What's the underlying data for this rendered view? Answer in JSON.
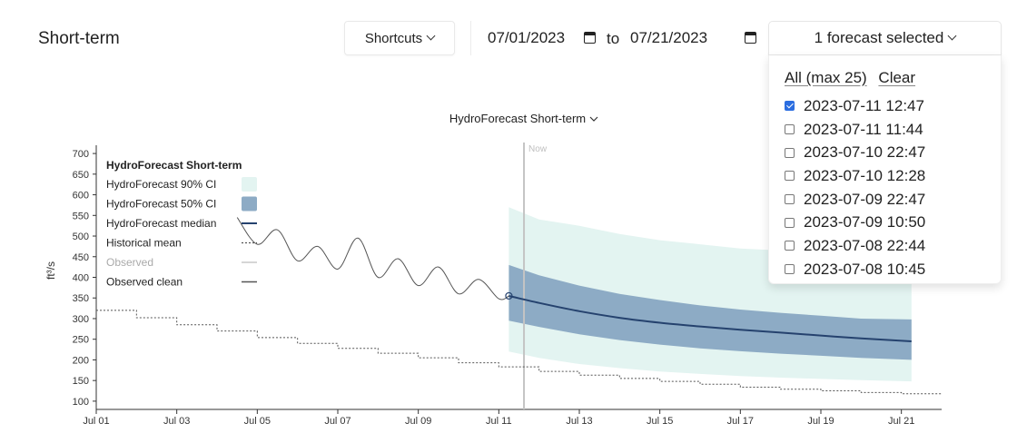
{
  "header": {
    "title": "Short-term",
    "shortcuts_label": "Shortcuts",
    "date_from": "07/01/2023",
    "date_to_label": "to",
    "date_to": "07/21/2023",
    "forecast_selector_label": "1 forecast selected"
  },
  "dropdown": {
    "all_label": "All (max 25)",
    "clear_label": "Clear",
    "items": [
      {
        "label": "2023-07-11 12:47",
        "checked": true
      },
      {
        "label": "2023-07-11 11:44",
        "checked": false
      },
      {
        "label": "2023-07-10 22:47",
        "checked": false
      },
      {
        "label": "2023-07-10 12:28",
        "checked": false
      },
      {
        "label": "2023-07-09 22:47",
        "checked": false
      },
      {
        "label": "2023-07-09 10:50",
        "checked": false
      },
      {
        "label": "2023-07-08 22:44",
        "checked": false
      },
      {
        "label": "2023-07-08 10:45",
        "checked": false
      }
    ]
  },
  "chart_data": {
    "type": "area",
    "title": "HydroForecast Short-term",
    "xlabel": "",
    "ylabel": "ft³/s",
    "ylim": [
      80,
      720
    ],
    "xlim": [
      "2023-07-01",
      "2023-07-22"
    ],
    "yticks": [
      100,
      150,
      200,
      250,
      300,
      350,
      400,
      450,
      500,
      550,
      600,
      650,
      700
    ],
    "xticks": [
      "Jul 01",
      "Jul 03",
      "Jul 05",
      "Jul 07",
      "Jul 09",
      "Jul 11",
      "Jul 13",
      "Jul 15",
      "Jul 17",
      "Jul 19",
      "Jul 21"
    ],
    "now_label": "Now",
    "now_x": "2023-07-11T15:00",
    "grid": false,
    "legend": {
      "placement": "top-left",
      "title": "HydroForecast Short-term",
      "entries": [
        "HydroForecast 90% CI",
        "HydroForecast 50% CI",
        "HydroForecast median",
        "Historical mean",
        "Observed",
        "Observed clean"
      ]
    },
    "colors": {
      "ci90": "#e3f4f1",
      "ci50": "#8dabc5",
      "median": "#25426e",
      "historical": "#555555",
      "observed": "#c8c8c8",
      "observed_clean": "#555555",
      "now_line": "#c4c4c4"
    },
    "series": [
      {
        "name": "Historical mean",
        "style": "step",
        "x": [
          "2023-07-01",
          "2023-07-02",
          "2023-07-03",
          "2023-07-04",
          "2023-07-05",
          "2023-07-06",
          "2023-07-07",
          "2023-07-08",
          "2023-07-09",
          "2023-07-10",
          "2023-07-11",
          "2023-07-12",
          "2023-07-13",
          "2023-07-14",
          "2023-07-15",
          "2023-07-16",
          "2023-07-17",
          "2023-07-18",
          "2023-07-19",
          "2023-07-20",
          "2023-07-21",
          "2023-07-22"
        ],
        "y": [
          320,
          302,
          285,
          270,
          254,
          240,
          228,
          216,
          205,
          193,
          183,
          172,
          163,
          155,
          148,
          141,
          134,
          129,
          125,
          121,
          118,
          116
        ]
      },
      {
        "name": "Observed clean",
        "x": [
          "2023-07-04T12:00",
          "2023-07-05T00:00",
          "2023-07-05T12:00",
          "2023-07-06T00:00",
          "2023-07-06T12:00",
          "2023-07-07T00:00",
          "2023-07-07T12:00",
          "2023-07-08T00:00",
          "2023-07-08T12:00",
          "2023-07-09T00:00",
          "2023-07-09T12:00",
          "2023-07-10T00:00",
          "2023-07-10T12:00",
          "2023-07-11T00:00",
          "2023-07-11T06:00"
        ],
        "y": [
          545,
          480,
          515,
          440,
          475,
          420,
          495,
          400,
          445,
          380,
          425,
          360,
          395,
          348,
          355
        ]
      },
      {
        "name": "HydroForecast median",
        "x": [
          "2023-07-11T06:00",
          "2023-07-12",
          "2023-07-13",
          "2023-07-14",
          "2023-07-15",
          "2023-07-16",
          "2023-07-17",
          "2023-07-18",
          "2023-07-19",
          "2023-07-20",
          "2023-07-21T06:00"
        ],
        "y": [
          355,
          338,
          318,
          302,
          290,
          281,
          273,
          266,
          259,
          252,
          245
        ]
      },
      {
        "name": "HydroForecast 50% CI",
        "x": [
          "2023-07-11T06:00",
          "2023-07-12",
          "2023-07-13",
          "2023-07-14",
          "2023-07-15",
          "2023-07-16",
          "2023-07-17",
          "2023-07-18",
          "2023-07-19",
          "2023-07-20",
          "2023-07-21T06:00"
        ],
        "low": [
          295,
          280,
          262,
          248,
          237,
          228,
          221,
          215,
          210,
          205,
          200
        ],
        "high": [
          430,
          405,
          380,
          360,
          345,
          332,
          322,
          314,
          307,
          300,
          298
        ]
      },
      {
        "name": "HydroForecast 90% CI",
        "x": [
          "2023-07-11T06:00",
          "2023-07-12",
          "2023-07-13",
          "2023-07-14",
          "2023-07-15",
          "2023-07-16",
          "2023-07-17",
          "2023-07-18",
          "2023-07-19",
          "2023-07-20",
          "2023-07-21T06:00"
        ],
        "low": [
          220,
          205,
          190,
          180,
          172,
          166,
          161,
          157,
          154,
          151,
          148
        ],
        "high": [
          570,
          540,
          525,
          505,
          490,
          480,
          470,
          465,
          458,
          452,
          450
        ]
      }
    ]
  }
}
